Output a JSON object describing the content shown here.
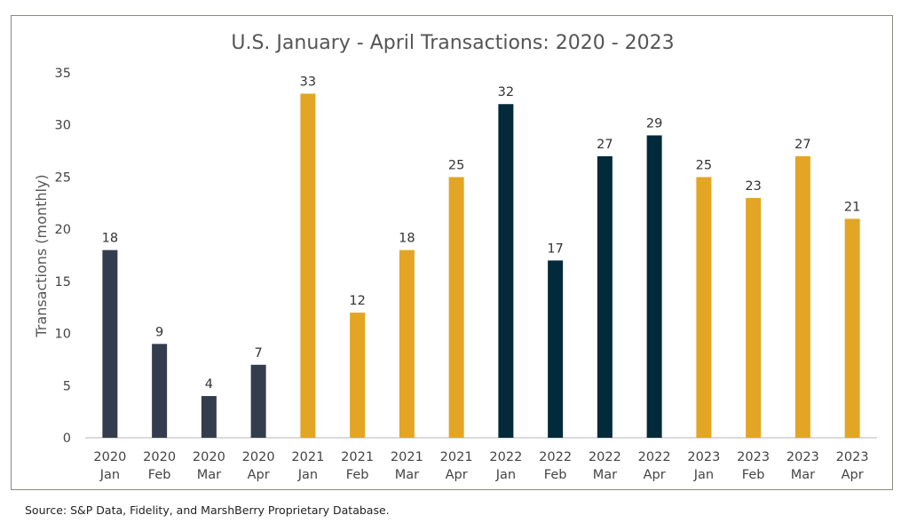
{
  "chart_data": {
    "type": "bar",
    "title": "U.S. January - April Transactions: 2020 - 2023",
    "ylabel": "Transactions (monthly)",
    "xlabel": "",
    "ylim": [
      0,
      35
    ],
    "yticks": [
      0,
      5,
      10,
      15,
      20,
      25,
      30,
      35
    ],
    "grid": false,
    "categories": [
      {
        "year": "2020",
        "month": "Jan"
      },
      {
        "year": "2020",
        "month": "Feb"
      },
      {
        "year": "2020",
        "month": "Mar"
      },
      {
        "year": "2020",
        "month": "Apr"
      },
      {
        "year": "2021",
        "month": "Jan"
      },
      {
        "year": "2021",
        "month": "Feb"
      },
      {
        "year": "2021",
        "month": "Mar"
      },
      {
        "year": "2021",
        "month": "Apr"
      },
      {
        "year": "2022",
        "month": "Jan"
      },
      {
        "year": "2022",
        "month": "Feb"
      },
      {
        "year": "2022",
        "month": "Mar"
      },
      {
        "year": "2022",
        "month": "Apr"
      },
      {
        "year": "2023",
        "month": "Jan"
      },
      {
        "year": "2023",
        "month": "Feb"
      },
      {
        "year": "2023",
        "month": "Mar"
      },
      {
        "year": "2023",
        "month": "Apr"
      }
    ],
    "values": [
      18,
      9,
      4,
      7,
      33,
      12,
      18,
      25,
      32,
      17,
      27,
      29,
      25,
      23,
      27,
      21
    ],
    "year_colors": {
      "2020": "#333d4e",
      "2021": "#e3a524",
      "2022": "#032a3b",
      "2023": "#e3a524"
    }
  },
  "source": "Source: S&P Data, Fidelity, and MarshBerry Proprietary Database."
}
